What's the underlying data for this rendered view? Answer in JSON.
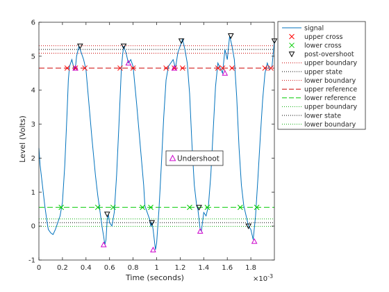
{
  "chart_data": {
    "type": "line",
    "xlabel": "Time (seconds)",
    "ylabel": "Level (Volts)",
    "xlim": [
      0,
      0.002
    ],
    "ylim": [
      -1,
      6
    ],
    "x_multiplier_label": "×10",
    "x_multiplier_exp": "-3",
    "x_ticks": [
      0,
      0.0002,
      0.0004,
      0.0006,
      0.0008,
      0.001,
      0.0012,
      0.0014,
      0.0016,
      0.0018
    ],
    "x_tick_labels": [
      "0",
      "0.2",
      "0.4",
      "0.6",
      "0.8",
      "1",
      "1.2",
      "1.4",
      "1.6",
      "1.8"
    ],
    "y_ticks": [
      -1,
      0,
      1,
      2,
      3,
      4,
      5,
      6
    ],
    "y_tick_labels": [
      "-1",
      "0",
      "1",
      "2",
      "3",
      "4",
      "5",
      "6"
    ],
    "levels": {
      "upper_state": 5.2,
      "upper_boundary_high": 5.31,
      "upper_boundary_low": 5.09,
      "upper_reference": 4.65,
      "lower_reference": 0.55,
      "lower_state": 0.1,
      "lower_boundary_high": 0.21,
      "lower_boundary_low": -0.01
    },
    "series": [
      {
        "name": "signal",
        "color": "#0072bd",
        "x": [
          0,
          1e-05,
          3e-05,
          5e-05,
          7e-05,
          8e-05,
          0.0001,
          0.00012,
          0.00014,
          0.00016,
          0.00018,
          0.0002,
          0.00022,
          0.00024,
          0.00025,
          0.00026,
          0.00028,
          0.0003,
          0.00031,
          0.00032,
          0.00034,
          0.00035,
          0.00036,
          0.00038,
          0.0004,
          0.00042,
          0.00045,
          0.00048,
          0.0005,
          0.00052,
          0.00054,
          0.00055,
          0.00056,
          0.00057,
          0.00058,
          0.00059,
          0.0006,
          0.00062,
          0.00064,
          0.00066,
          0.00068,
          0.0007,
          0.00071,
          0.00072,
          0.00074,
          0.00076,
          0.00078,
          0.0008,
          0.00083,
          0.00086,
          0.00089,
          0.0009,
          0.00092,
          0.00094,
          0.00095,
          0.00096,
          0.00097,
          0.00098,
          0.00099,
          0.001,
          0.00102,
          0.00104,
          0.00106,
          0.00108,
          0.0011,
          0.00112,
          0.00114,
          0.00116,
          0.00118,
          0.0012,
          0.00122,
          0.00124,
          0.00126,
          0.00128,
          0.0013,
          0.00132,
          0.00134,
          0.00135,
          0.00136,
          0.00137,
          0.00138,
          0.0014,
          0.00142,
          0.00144,
          0.00146,
          0.00148,
          0.0015,
          0.00152,
          0.00154,
          0.00156,
          0.00158,
          0.0016,
          0.00162,
          0.00164,
          0.00166,
          0.00168,
          0.0017,
          0.00172,
          0.00174,
          0.00176,
          0.00178,
          0.0018,
          0.00182,
          0.00184,
          0.00186,
          0.00188,
          0.0019,
          0.00192,
          0.00194,
          0.00196,
          0.00198,
          0.002
        ],
        "y": [
          2.3,
          1.8,
          1.2,
          0.6,
          0.1,
          -0.1,
          -0.2,
          -0.25,
          -0.1,
          0.1,
          0.3,
          0.7,
          1.8,
          3.4,
          4.3,
          4.7,
          4.9,
          4.6,
          4.65,
          5.0,
          5.3,
          5.2,
          5.1,
          4.9,
          4.6,
          3.8,
          2.6,
          1.5,
          0.9,
          0.4,
          -0.1,
          -0.3,
          -0.55,
          -0.4,
          0.2,
          0.35,
          0.1,
          0.0,
          0.4,
          1.5,
          3.0,
          4.6,
          5.0,
          5.3,
          5.1,
          4.8,
          4.9,
          4.7,
          3.6,
          2.4,
          1.2,
          0.6,
          0.4,
          0.2,
          0.0,
          0.1,
          -0.1,
          -0.4,
          -0.7,
          -0.5,
          0.5,
          1.8,
          3.2,
          4.3,
          4.7,
          4.8,
          4.9,
          4.65,
          5.1,
          5.3,
          5.5,
          5.2,
          4.8,
          3.9,
          2.4,
          1.2,
          0.6,
          0.5,
          0.2,
          -0.1,
          -0.15,
          0.4,
          0.3,
          0.6,
          1.5,
          2.8,
          4.1,
          4.8,
          4.65,
          4.5,
          5.2,
          4.9,
          5.6,
          5.3,
          4.9,
          3.8,
          2.3,
          1.2,
          0.6,
          0.3,
          0.0,
          -0.1,
          -0.4,
          0.3,
          1.4,
          2.6,
          3.7,
          4.5,
          4.8,
          4.6,
          4.7,
          5.45
        ]
      }
    ],
    "upper_cross": {
      "x": [
        0.00024,
        0.00031,
        0.00039,
        0.00069,
        0.0008,
        0.00108,
        0.00115,
        0.00122,
        0.00152,
        0.00156,
        0.00164,
        0.00192,
        0.00197
      ],
      "y": [
        4.65,
        4.65,
        4.65,
        4.65,
        4.65,
        4.65,
        4.65,
        4.65,
        4.65,
        4.65,
        4.65,
        4.65,
        4.65
      ]
    },
    "lower_cross": {
      "x": [
        0.00019,
        0.0005,
        0.00063,
        0.00088,
        0.00095,
        0.00128,
        0.00143,
        0.00171,
        0.00185
      ],
      "y": [
        0.55,
        0.55,
        0.55,
        0.55,
        0.55,
        0.55,
        0.55,
        0.55,
        0.55
      ]
    },
    "post_overshoot": {
      "x": [
        0.00035,
        0.00058,
        0.00072,
        0.00096,
        0.00121,
        0.00136,
        0.00163,
        0.00178,
        0.002
      ],
      "y": [
        5.3,
        0.35,
        5.3,
        0.1,
        5.45,
        0.55,
        5.6,
        0.0,
        5.45
      ]
    },
    "undershoot": {
      "x": [
        0.00031,
        0.00055,
        0.00076,
        0.00097,
        0.00115,
        0.00137,
        0.00158,
        0.00183
      ],
      "y": [
        4.65,
        -0.55,
        4.8,
        -0.7,
        4.65,
        -0.15,
        4.5,
        -0.45
      ]
    },
    "legend": {
      "placement": "outside-top-right",
      "entries": [
        {
          "label": "signal",
          "style": "line-solid",
          "color": "#0072bd"
        },
        {
          "label": "upper cross",
          "style": "marker-x",
          "color": "#ff0000"
        },
        {
          "label": "lower cross",
          "style": "marker-x",
          "color": "#00cc00"
        },
        {
          "label": "post-overshoot",
          "style": "marker-tri-down",
          "color": "#000000"
        },
        {
          "label": "upper boundary",
          "style": "line-dotted",
          "color": "#cc0000"
        },
        {
          "label": "upper state",
          "style": "line-dotted",
          "color": "#000000"
        },
        {
          "label": "lower boundary",
          "style": "line-dotted",
          "color": "#cc0000"
        },
        {
          "label": "upper reference",
          "style": "line-dashed",
          "color": "#cc0000"
        },
        {
          "label": "lower reference",
          "style": "line-dashed",
          "color": "#00cc00"
        },
        {
          "label": "upper boundary",
          "style": "line-dotted",
          "color": "#00aa00"
        },
        {
          "label": "lower state",
          "style": "line-dotted",
          "color": "#000000"
        },
        {
          "label": "lower boundary",
          "style": "line-dotted",
          "color": "#00aa00"
        }
      ]
    },
    "annotation": {
      "label": "Undershoot",
      "marker_color": "#cc00cc"
    },
    "grid": false
  }
}
